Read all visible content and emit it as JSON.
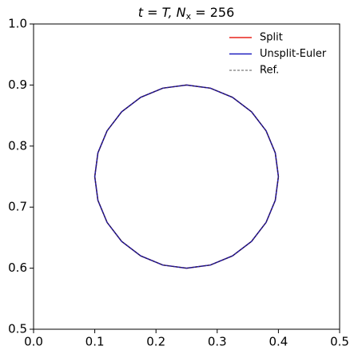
{
  "chart_data": {
    "type": "line",
    "title": [
      "t = T, N",
      "x",
      " = 256"
    ],
    "x": [
      0.4,
      0.3949,
      0.3799,
      0.3561,
      0.325,
      0.2888,
      0.25,
      0.2112,
      0.175,
      0.1439,
      0.1201,
      0.1051,
      0.1,
      0.1051,
      0.1201,
      0.1439,
      0.175,
      0.2112,
      0.25,
      0.2888,
      0.325,
      0.3561,
      0.3799,
      0.3949,
      0.4
    ],
    "series": [
      {
        "name": "Split",
        "color": "#e8241c",
        "dash": false,
        "width": 1.5,
        "values": [
          0.75,
          0.7888,
          0.825,
          0.8561,
          0.8799,
          0.8949,
          0.9,
          0.8949,
          0.8799,
          0.8561,
          0.825,
          0.7888,
          0.75,
          0.7112,
          0.675,
          0.6439,
          0.6201,
          0.6051,
          0.6,
          0.6051,
          0.6201,
          0.6439,
          0.675,
          0.7112,
          0.75
        ]
      },
      {
        "name": "Unsplit-Euler",
        "color": "#1f1fbf",
        "dash": false,
        "width": 1.5,
        "values": [
          0.75,
          0.7888,
          0.825,
          0.8561,
          0.8799,
          0.8949,
          0.9,
          0.8949,
          0.8799,
          0.8561,
          0.825,
          0.7888,
          0.75,
          0.7112,
          0.675,
          0.6439,
          0.6201,
          0.6051,
          0.6,
          0.6051,
          0.6201,
          0.6439,
          0.675,
          0.7112,
          0.75
        ]
      },
      {
        "name": "Ref.",
        "color": "#222222",
        "dash": true,
        "width": 0.8,
        "values": [
          0.75,
          0.7888,
          0.825,
          0.8561,
          0.8799,
          0.8949,
          0.9,
          0.8949,
          0.8799,
          0.8561,
          0.825,
          0.7888,
          0.75,
          0.7112,
          0.675,
          0.6439,
          0.6201,
          0.6051,
          0.6,
          0.6051,
          0.6201,
          0.6439,
          0.675,
          0.7112,
          0.75
        ]
      }
    ],
    "xlim": [
      0,
      0.5
    ],
    "ylim": [
      0.5,
      1
    ],
    "xticks": [
      {
        "value": 0,
        "label": "0.0"
      },
      0.1,
      0.2,
      0.3,
      0.4,
      0.5
    ],
    "yticks": [
      0.5,
      0.6,
      0.7,
      0.8,
      0.9,
      {
        "value": 1,
        "label": "1.0"
      }
    ],
    "grid": false,
    "legend": "upper right"
  }
}
